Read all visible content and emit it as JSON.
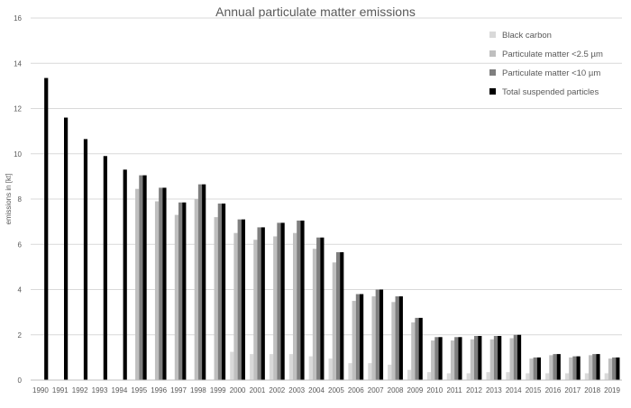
{
  "chart_data": {
    "type": "bar",
    "title": "Annual particulate matter emissions",
    "xlabel": "",
    "ylabel": "emissions in [kt]",
    "ylim": [
      0,
      16
    ],
    "yticks": [
      0,
      2,
      4,
      6,
      8,
      10,
      12,
      14,
      16
    ],
    "grid": true,
    "legend_position": "top-right",
    "categories": [
      "1990",
      "1991",
      "1992",
      "1993",
      "1994",
      "1995",
      "1996",
      "1997",
      "1998",
      "1999",
      "2000",
      "2001",
      "2002",
      "2003",
      "2004",
      "2005",
      "2006",
      "2007",
      "2008",
      "2009",
      "2010",
      "2011",
      "2012",
      "2013",
      "2014",
      "2015",
      "2016",
      "2017",
      "2018",
      "2019"
    ],
    "series": [
      {
        "name": "Black carbon",
        "color": "#d9d9d9",
        "values": [
          null,
          null,
          null,
          null,
          null,
          null,
          null,
          null,
          null,
          null,
          1.25,
          1.15,
          1.15,
          1.15,
          1.05,
          0.95,
          0.75,
          0.75,
          0.68,
          0.45,
          0.35,
          0.3,
          0.3,
          0.35,
          0.35,
          0.3,
          0.3,
          0.3,
          0.3,
          0.3
        ]
      },
      {
        "name": "Particulate matter <2.5 µm",
        "color": "#bfbfbf",
        "values": [
          null,
          null,
          null,
          null,
          null,
          8.45,
          7.9,
          7.3,
          8.0,
          7.2,
          6.5,
          6.2,
          6.35,
          6.5,
          5.8,
          5.2,
          3.5,
          3.7,
          3.45,
          2.55,
          1.75,
          1.75,
          1.8,
          1.8,
          1.85,
          0.95,
          1.1,
          1.0,
          1.1,
          0.95
        ]
      },
      {
        "name": "Particulate matter <10 µm",
        "color": "#7f7f7f",
        "values": [
          null,
          null,
          null,
          null,
          null,
          9.05,
          8.5,
          7.85,
          8.65,
          7.8,
          7.1,
          6.75,
          6.95,
          7.05,
          6.3,
          5.65,
          3.8,
          4.0,
          3.7,
          2.75,
          1.9,
          1.9,
          1.95,
          1.95,
          2.0,
          1.0,
          1.15,
          1.05,
          1.15,
          1.0
        ]
      },
      {
        "name": "Total suspended particles",
        "color": "#000000",
        "values": [
          13.35,
          11.6,
          10.65,
          9.9,
          9.3,
          9.05,
          8.5,
          7.85,
          8.65,
          7.8,
          7.1,
          6.75,
          6.95,
          7.05,
          6.3,
          5.65,
          3.8,
          4.0,
          3.7,
          2.75,
          1.9,
          1.9,
          1.95,
          1.95,
          2.0,
          1.0,
          1.15,
          1.05,
          1.15,
          1.0
        ]
      }
    ]
  }
}
